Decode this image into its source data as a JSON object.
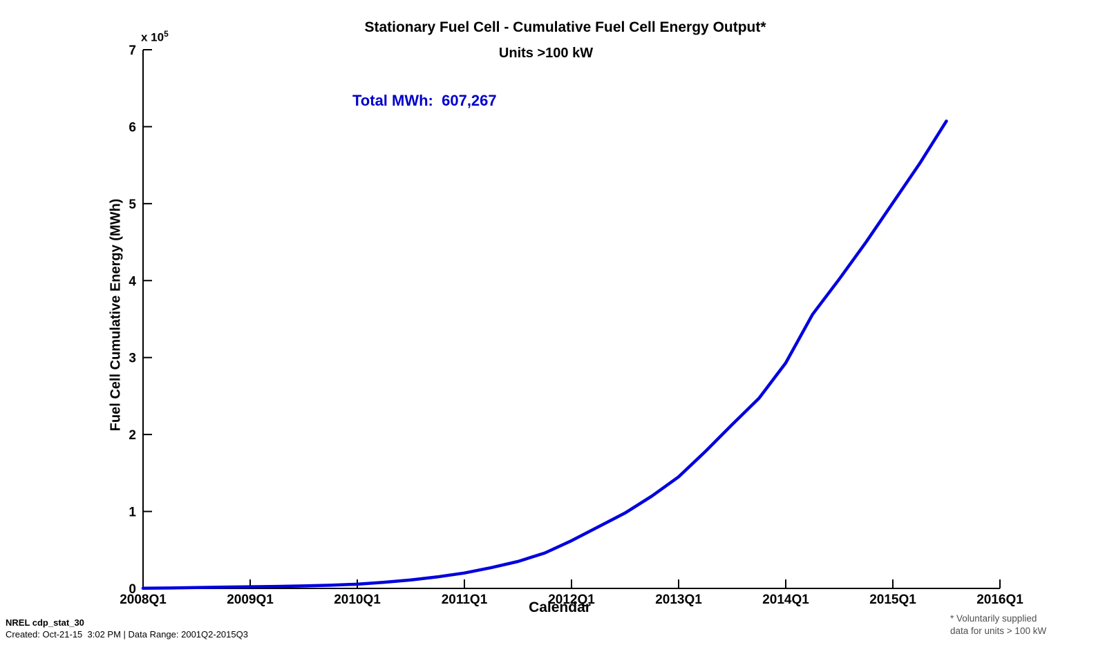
{
  "figure": {
    "annotation": {
      "text": "Total MWh:  607,267",
      "color": "#0000CC"
    }
  },
  "chart_data": {
    "type": "line",
    "title": "Stationary Fuel Cell - Cumulative Fuel Cell Energy Output*",
    "subtitle": "Units >100 kW",
    "xlabel": "Calendar",
    "ylabel": "Fuel Cell Cumulative Energy (MWh)",
    "y_scale_exponent_base": "x 10",
    "y_scale_exponent_power": "5",
    "ylim": [
      0,
      700000
    ],
    "y_tick_labels": [
      "0",
      "1",
      "2",
      "3",
      "4",
      "5",
      "6",
      "7"
    ],
    "x_tick_labels": [
      "2008Q1",
      "2009Q1",
      "2010Q1",
      "2011Q1",
      "2012Q1",
      "2013Q1",
      "2014Q1",
      "2015Q1",
      "2016Q1"
    ],
    "grid": false,
    "legend": "none",
    "line_color": "#0000DD",
    "total_mwh": 607267,
    "series": [
      {
        "name": "Cumulative Fuel Cell Energy Output",
        "x": [
          "2008Q1",
          "2008Q2",
          "2008Q3",
          "2008Q4",
          "2009Q1",
          "2009Q2",
          "2009Q3",
          "2009Q4",
          "2010Q1",
          "2010Q2",
          "2010Q3",
          "2010Q4",
          "2011Q1",
          "2011Q2",
          "2011Q3",
          "2011Q4",
          "2012Q1",
          "2012Q2",
          "2012Q3",
          "2012Q4",
          "2013Q1",
          "2013Q2",
          "2013Q3",
          "2013Q4",
          "2014Q1",
          "2014Q2",
          "2014Q3",
          "2014Q4",
          "2015Q1",
          "2015Q2",
          "2015Q3"
        ],
        "values_mwh": [
          200,
          600,
          1100,
          1700,
          2100,
          2600,
          3200,
          4200,
          5500,
          8000,
          11000,
          15000,
          20000,
          27000,
          35000,
          46000,
          62000,
          80000,
          98000,
          120000,
          145000,
          178000,
          213000,
          247000,
          293000,
          356000,
          402000,
          450000,
          501000,
          552000,
          607267
        ]
      }
    ]
  },
  "footer": {
    "left_line1": "NREL cdp_stat_30",
    "left_line2": "Created: Oct-21-15  3:02 PM | Data Range: 2001Q2-2015Q3",
    "right_line1": "* Voluntarily supplied",
    "right_line2": "data for units > 100 kW"
  }
}
